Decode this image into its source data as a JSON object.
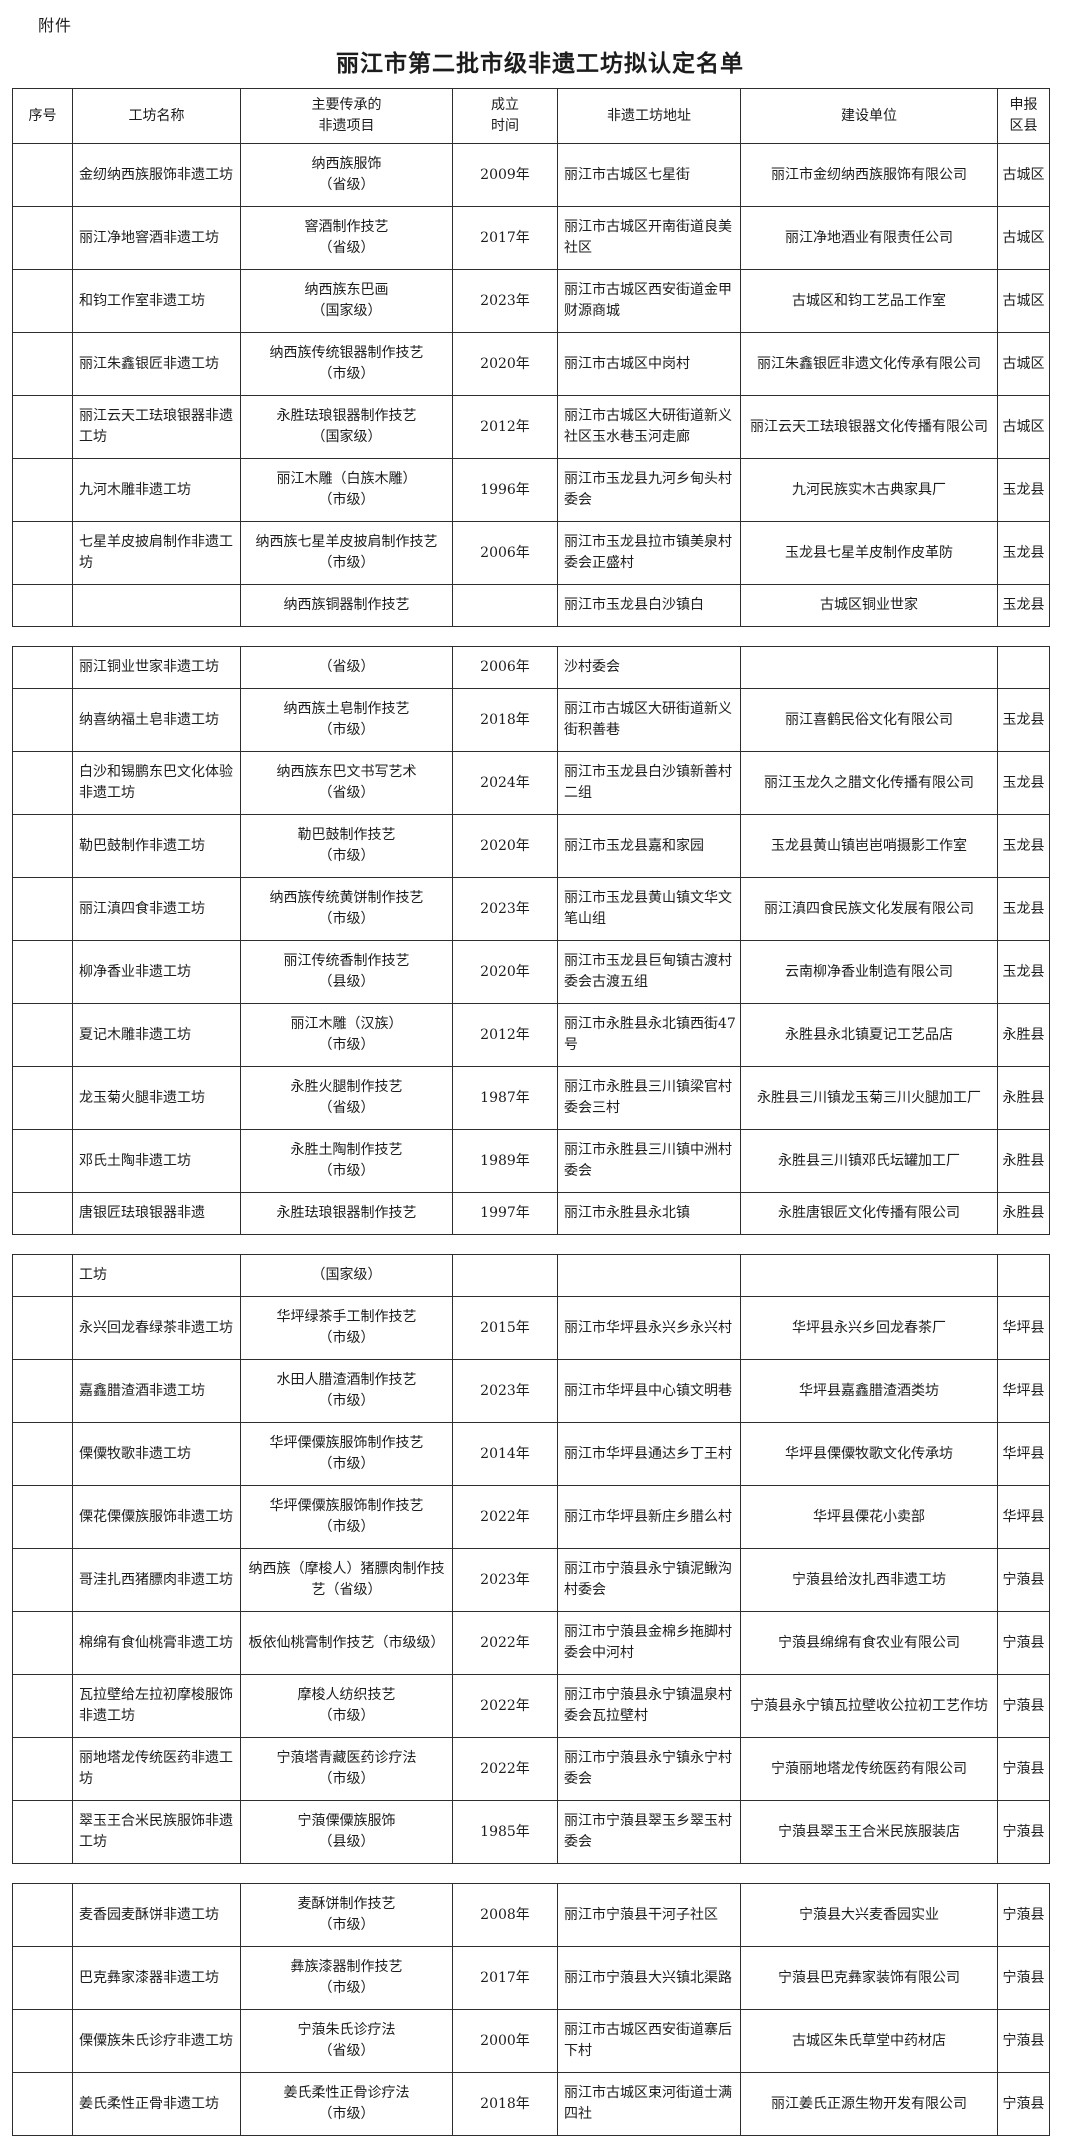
{
  "attachment_label": "附件",
  "title": "丽江市第二批市级非遗工坊拟认定名单",
  "table": {
    "columns": [
      "序号",
      "工坊名称",
      "主要传承的\n非遗项目",
      "成立\n时间",
      "非遗工坊地址",
      "建设单位",
      "申报\n区县"
    ],
    "segments": [
      {
        "has_header": true,
        "rows": [
          {
            "no": "",
            "name": "金纫纳西族服饰非遗工坊",
            "heritage": "纳西族服饰\n（省级）",
            "year": "2009年",
            "address": "丽江市古城区七星街",
            "builder": "丽江市金纫纳西族服饰有限公司",
            "county": "古城区"
          },
          {
            "no": "",
            "name": "丽江净地窨酒非遗工坊",
            "heritage": "窨酒制作技艺\n（省级）",
            "year": "2017年",
            "address": "丽江市古城区开南街道良美社区",
            "builder": "丽江净地酒业有限责任公司",
            "county": "古城区"
          },
          {
            "no": "",
            "name": "和钧工作室非遗工坊",
            "heritage": "纳西族东巴画\n（国家级）",
            "year": "2023年",
            "address": "丽江市古城区西安街道金甲财源商城",
            "builder": "古城区和钧工艺品工作室",
            "county": "古城区"
          },
          {
            "no": "",
            "name": "丽江朱鑫银匠非遗工坊",
            "heritage": "纳西族传统银器制作技艺\n（市级）",
            "year": "2020年",
            "address": "丽江市古城区中岗村",
            "builder": "丽江朱鑫银匠非遗文化传承有限公司",
            "county": "古城区"
          },
          {
            "no": "",
            "name": "丽江云天工珐琅银器非遗工坊",
            "heritage": "永胜珐琅银器制作技艺\n（国家级）",
            "year": "2012年",
            "address": "丽江市古城区大研街道新义社区玉水巷玉河走廊",
            "builder": "丽江云天工珐琅银器文化传播有限公司",
            "county": "古城区"
          },
          {
            "no": "",
            "name": "九河木雕非遗工坊",
            "heritage": "丽江木雕（白族木雕）\n（市级）",
            "year": "1996年",
            "address": "丽江市玉龙县九河乡甸头村委会",
            "builder": "九河民族实木古典家具厂",
            "county": "玉龙县"
          },
          {
            "no": "",
            "name": "七星羊皮披肩制作非遗工坊",
            "heritage": "纳西族七星羊皮披肩制作技艺（市级）",
            "year": "2006年",
            "address": "丽江市玉龙县拉市镇美泉村委会正盛村",
            "builder": "玉龙县七星羊皮制作皮革防",
            "county": "玉龙县"
          },
          {
            "no": "",
            "name": "",
            "heritage": "纳西族铜器制作技艺",
            "year": "",
            "address": "丽江市玉龙县白沙镇白",
            "builder": "古城区铜业世家",
            "county": "玉龙县"
          }
        ]
      },
      {
        "has_header": false,
        "rows": [
          {
            "no": "",
            "name": "丽江铜业世家非遗工坊",
            "heritage": "（省级）",
            "year": "2006年",
            "address": "沙村委会",
            "builder": "",
            "county": ""
          },
          {
            "no": "",
            "name": "纳喜纳福土皂非遗工坊",
            "heritage": "纳西族土皂制作技艺\n（市级）",
            "year": "2018年",
            "address": "丽江市古城区大研街道新义街积善巷",
            "builder": "丽江喜鹤民俗文化有限公司",
            "county": "玉龙县"
          },
          {
            "no": "",
            "name": "白沙和锡鹏东巴文化体验非遗工坊",
            "heritage": "纳西族东巴文书写艺术\n（省级）",
            "year": "2024年",
            "address": "丽江市玉龙县白沙镇新善村二组",
            "builder": "丽江玉龙久之腊文化传播有限公司",
            "county": "玉龙县"
          },
          {
            "no": "",
            "name": "勒巴鼓制作非遗工坊",
            "heritage": "勒巴鼓制作技艺\n（市级）",
            "year": "2020年",
            "address": "丽江市玉龙县嘉和家园",
            "builder": "玉龙县黄山镇岜岜哨摄影工作室",
            "county": "玉龙县"
          },
          {
            "no": "",
            "name": "丽江滇四食非遗工坊",
            "heritage": "纳西族传统黄饼制作技艺\n（市级）",
            "year": "2023年",
            "address": "丽江市玉龙县黄山镇文华文笔山组",
            "builder": "丽江滇四食民族文化发展有限公司",
            "county": "玉龙县"
          },
          {
            "no": "",
            "name": "柳净香业非遗工坊",
            "heritage": "丽江传统香制作技艺\n（县级）",
            "year": "2020年",
            "address": "丽江市玉龙县巨甸镇古渡村委会古渡五组",
            "builder": "云南柳净香业制造有限公司",
            "county": "玉龙县"
          },
          {
            "no": "",
            "name": "夏记木雕非遗工坊",
            "heritage": "丽江木雕（汉族）\n（市级）",
            "year": "2012年",
            "address": "丽江市永胜县永北镇西街47号",
            "builder": "永胜县永北镇夏记工艺品店",
            "county": "永胜县"
          },
          {
            "no": "",
            "name": "龙玉菊火腿非遗工坊",
            "heritage": "永胜火腿制作技艺\n（省级）",
            "year": "1987年",
            "address": "丽江市永胜县三川镇梁官村委会三村",
            "builder": "永胜县三川镇龙玉菊三川火腿加工厂",
            "county": "永胜县"
          },
          {
            "no": "",
            "name": "邓氏土陶非遗工坊",
            "heritage": "永胜土陶制作技艺\n（市级）",
            "year": "1989年",
            "address": "丽江市永胜县三川镇中洲村委会",
            "builder": "永胜县三川镇邓氏坛罐加工厂",
            "county": "永胜县"
          },
          {
            "no": "",
            "name": "唐银匠珐琅银器非遗",
            "heritage": "永胜珐琅银器制作技艺",
            "year": "1997年",
            "address": "丽江市永胜县永北镇",
            "builder": "永胜唐银匠文化传播有限公司",
            "county": "永胜县"
          }
        ]
      },
      {
        "has_header": false,
        "rows": [
          {
            "no": "",
            "name": "工坊",
            "heritage": "（国家级）",
            "year": "",
            "address": "",
            "builder": "",
            "county": ""
          },
          {
            "no": "",
            "name": "永兴回龙春绿茶非遗工坊",
            "heritage": "华坪绿茶手工制作技艺\n（市级）",
            "year": "2015年",
            "address": "丽江市华坪县永兴乡永兴村",
            "builder": "华坪县永兴乡回龙春茶厂",
            "county": "华坪县"
          },
          {
            "no": "",
            "name": "嘉鑫腊渣酒非遗工坊",
            "heritage": "水田人腊渣酒制作技艺\n（市级）",
            "year": "2023年",
            "address": "丽江市华坪县中心镇文明巷",
            "builder": "华坪县嘉鑫腊渣酒类坊",
            "county": "华坪县"
          },
          {
            "no": "",
            "name": "傈僳牧歌非遗工坊",
            "heritage": "华坪傈僳族服饰制作技艺\n（市级）",
            "year": "2014年",
            "address": "丽江市华坪县通达乡丁王村",
            "builder": "华坪县傈僳牧歌文化传承坊",
            "county": "华坪县"
          },
          {
            "no": "",
            "name": "傈花傈僳族服饰非遗工坊",
            "heritage": "华坪傈僳族服饰制作技艺\n（市级）",
            "year": "2022年",
            "address": "丽江市华坪县新庄乡腊么村",
            "builder": "华坪县傈花小卖部",
            "county": "华坪县"
          },
          {
            "no": "",
            "name": "哥洼扎西猪膘肉非遗工坊",
            "heritage": "纳西族（摩梭人）猪膘肉制作技艺（省级）",
            "year": "2023年",
            "address": "丽江市宁蒗县永宁镇泥鳅沟村委会",
            "builder": "宁蒗县给汝扎西非遗工坊",
            "county": "宁蒗县"
          },
          {
            "no": "",
            "name": "棉绵有食仙桃膏非遗工坊",
            "heritage": "板依仙桃膏制作技艺（市级级）",
            "year": "2022年",
            "address": "丽江市宁蒗县金棉乡拖脚村委会中河村",
            "builder": "宁蒗县绵绵有食农业有限公司",
            "county": "宁蒗县"
          },
          {
            "no": "",
            "name": "瓦拉壁给左拉初摩梭服饰非遗工坊",
            "heritage": "摩梭人纺织技艺\n（市级）",
            "year": "2022年",
            "address": "丽江市宁蒗县永宁镇温泉村委会瓦拉壁村",
            "builder": "宁蒗县永宁镇瓦拉壁收公拉初工艺作坊",
            "county": "宁蒗县"
          },
          {
            "no": "",
            "name": "丽地塔龙传统医药非遗工坊",
            "heritage": "宁蒗塔青藏医药诊疗法\n（市级）",
            "year": "2022年",
            "address": "丽江市宁蒗县永宁镇永宁村委会",
            "builder": "宁蒗丽地塔龙传统医药有限公司",
            "county": "宁蒗县"
          },
          {
            "no": "",
            "name": "翠玉王合米民族服饰非遗工坊",
            "heritage": "宁蒗傈僳族服饰\n（县级）",
            "year": "1985年",
            "address": "丽江市宁蒗县翠玉乡翠玉村委会",
            "builder": "宁蒗县翠玉王合米民族服装店",
            "county": "宁蒗县"
          }
        ]
      },
      {
        "has_header": false,
        "rows": [
          {
            "no": "",
            "name": "麦香园麦酥饼非遗工坊",
            "heritage": "麦酥饼制作技艺\n（市级）",
            "year": "2008年",
            "address": "丽江市宁蒗县干河子社区",
            "builder": "宁蒗县大兴麦香园实业",
            "county": "宁蒗县"
          },
          {
            "no": "",
            "name": "巴克彝家漆器非遗工坊",
            "heritage": "彝族漆器制作技艺\n（市级）",
            "year": "2017年",
            "address": "丽江市宁蒗县大兴镇北渠路",
            "builder": "宁蒗县巴克彝家装饰有限公司",
            "county": "宁蒗县"
          },
          {
            "no": "",
            "name": "傈僳族朱氏诊疗非遗工坊",
            "heritage": "宁蒗朱氏诊疗法\n（省级）",
            "year": "2000年",
            "address": "丽江市古城区西安街道寨后下村",
            "builder": "古城区朱氏草堂中药材店",
            "county": "宁蒗县"
          },
          {
            "no": "",
            "name": "姜氏柔性正骨非遗工坊",
            "heritage": "姜氏柔性正骨诊疗法\n（市级）",
            "year": "2018年",
            "address": "丽江市古城区束河街道士满四社",
            "builder": "丽江姜氏正源生物开发有限公司",
            "county": "宁蒗县"
          }
        ]
      }
    ]
  }
}
